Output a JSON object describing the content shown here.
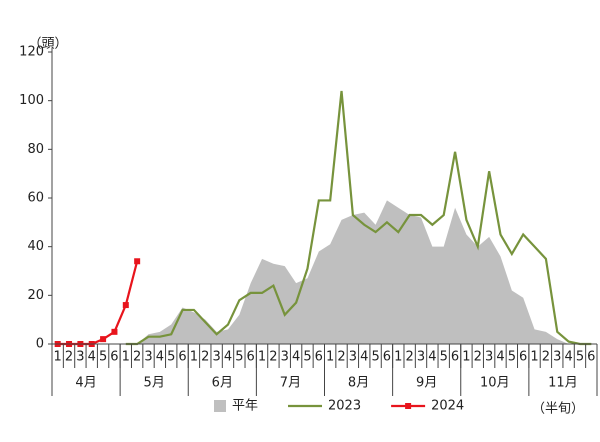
{
  "chart_data": {
    "type": "line",
    "y_label": "（頭）",
    "x_label": "（半旬）",
    "categories": [
      "1",
      "2",
      "3",
      "4",
      "5",
      "6",
      "1",
      "2",
      "3",
      "4",
      "5",
      "6",
      "1",
      "2",
      "3",
      "4",
      "5",
      "6",
      "1",
      "2",
      "3",
      "4",
      "5",
      "6",
      "1",
      "2",
      "3",
      "4",
      "5",
      "6",
      "1",
      "2",
      "3",
      "4",
      "5",
      "6",
      "1",
      "2",
      "3",
      "4",
      "5",
      "6",
      "1",
      "2",
      "3",
      "4",
      "5",
      "6"
    ],
    "category_groups": [
      "4月",
      "5月",
      "6月",
      "7月",
      "8月",
      "9月",
      "10月",
      "11月"
    ],
    "ylim": [
      0,
      120
    ],
    "yticks": [
      0,
      20,
      40,
      60,
      80,
      100,
      120
    ],
    "legend": "bottom",
    "series": [
      {
        "name": "平年",
        "kind": "area",
        "color": "#bfbfbf",
        "values": [
          0,
          0,
          0,
          0,
          0,
          0,
          0,
          0,
          4,
          5,
          8,
          15,
          13,
          10,
          5,
          6,
          12,
          25,
          35,
          33,
          32,
          25,
          27,
          38,
          41,
          51,
          53,
          54,
          49,
          59,
          56,
          53,
          52,
          40,
          40,
          56,
          45,
          40,
          44,
          36,
          22,
          19,
          6,
          5,
          2,
          0,
          0,
          0
        ]
      },
      {
        "name": "2023",
        "kind": "line",
        "color": "#77933c",
        "values": [
          null,
          null,
          null,
          null,
          null,
          null,
          0,
          0,
          3,
          3,
          4,
          14,
          14,
          9,
          4,
          8,
          18,
          21,
          21,
          24,
          12,
          17,
          31,
          59,
          59,
          104,
          53,
          49,
          46,
          50,
          46,
          53,
          53,
          49,
          53,
          79,
          51,
          40,
          71,
          45,
          37,
          45,
          40,
          35,
          5,
          1,
          0,
          0
        ]
      },
      {
        "name": "2024",
        "kind": "line-marker",
        "color": "#e8141c",
        "values": [
          0,
          0,
          0,
          0,
          2,
          5,
          16,
          34,
          null,
          null,
          null,
          null,
          null,
          null,
          null,
          null,
          null,
          null,
          null,
          null,
          null,
          null,
          null,
          null,
          null,
          null,
          null,
          null,
          null,
          null,
          null,
          null,
          null,
          null,
          null,
          null,
          null,
          null,
          null,
          null,
          null,
          null,
          null,
          null,
          null,
          null,
          null,
          null
        ]
      }
    ]
  }
}
